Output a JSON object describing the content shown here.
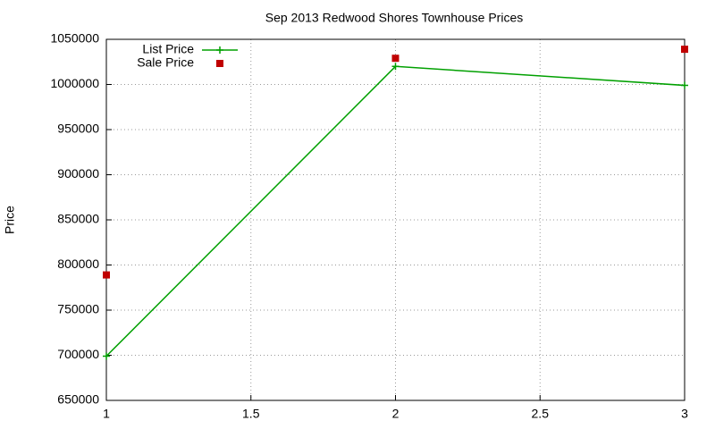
{
  "chart_data": {
    "type": "line",
    "title": "Sep 2013 Redwood Shores Townhouse Prices",
    "ylabel": "Price",
    "x": [
      1,
      2,
      3
    ],
    "series": [
      {
        "name": "List Price",
        "color": "#00a000",
        "mode": "lines+markers",
        "values": [
          699000,
          1020000,
          999000
        ]
      },
      {
        "name": "Sale Price",
        "color": "#c00000",
        "mode": "markers",
        "values": [
          789000,
          1029000,
          1039000
        ]
      }
    ],
    "xlim": [
      1,
      3
    ],
    "xticks": [
      1,
      1.5,
      2,
      2.5,
      3
    ],
    "ylim": [
      650000,
      1050000
    ],
    "yticks": [
      650000,
      700000,
      750000,
      800000,
      850000,
      900000,
      950000,
      1000000,
      1050000
    ],
    "grid": true,
    "legend": "top-left"
  }
}
